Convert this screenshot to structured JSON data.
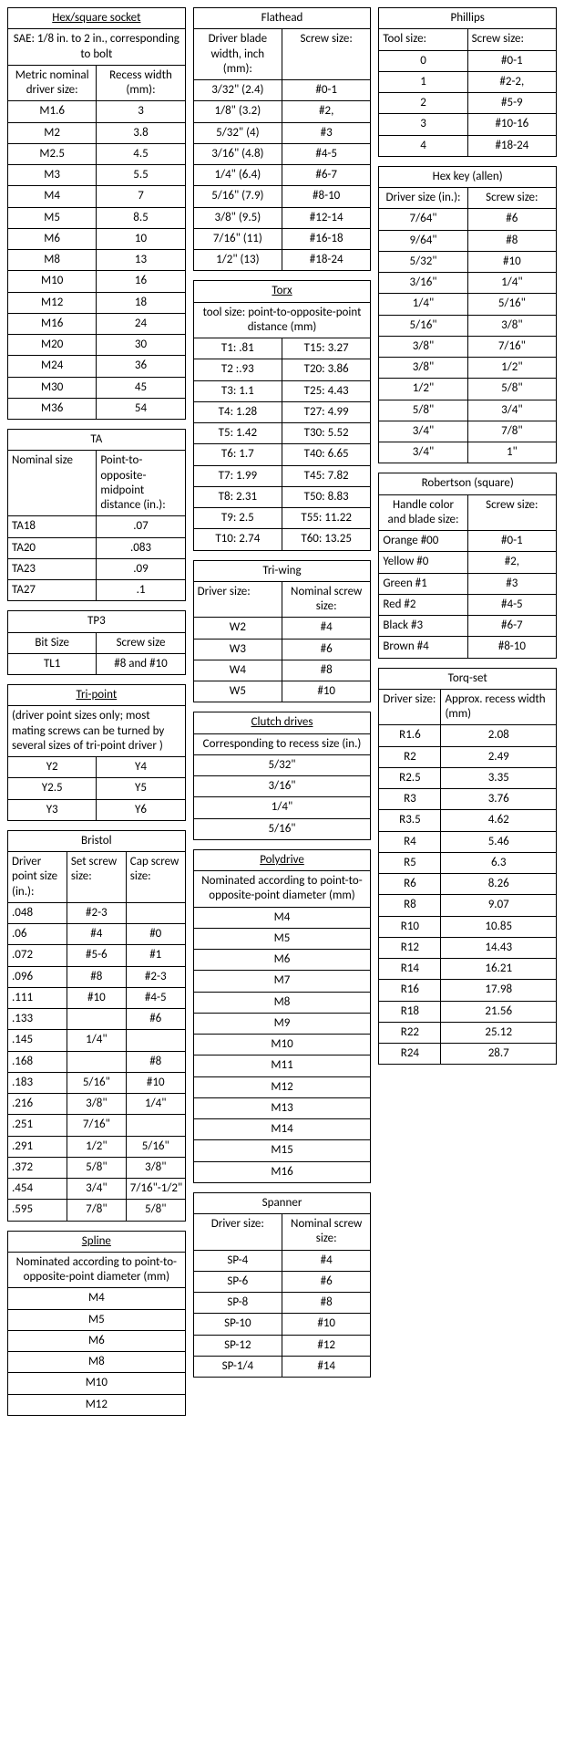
{
  "hex_square": {
    "title": "Hex/square socket",
    "subtitle": "SAE:   1/8 in. to 2 in., corresponding to bolt",
    "headers": [
      "Metric nominal driver size:",
      "Recess width (mm):"
    ],
    "rows": [
      [
        "M1.6",
        "3"
      ],
      [
        "M2",
        "3.8"
      ],
      [
        "M2.5",
        "4.5"
      ],
      [
        "M3",
        "5.5"
      ],
      [
        "M4",
        "7"
      ],
      [
        "M5",
        "8.5"
      ],
      [
        "M6",
        "10"
      ],
      [
        "M8",
        "13"
      ],
      [
        "M10",
        "16"
      ],
      [
        "M12",
        "18"
      ],
      [
        "M16",
        "24"
      ],
      [
        "M20",
        "30"
      ],
      [
        "M24",
        "36"
      ],
      [
        "M30",
        "45"
      ],
      [
        "M36",
        "54"
      ]
    ]
  },
  "ta": {
    "title": "TA",
    "headers": [
      "Nominal size",
      "Point-to-opposite-midpoint distance (in.):"
    ],
    "rows": [
      [
        "TA18",
        ".07"
      ],
      [
        "TA20",
        ".083"
      ],
      [
        "TA23",
        ".09"
      ],
      [
        "TA27",
        ".1"
      ]
    ]
  },
  "tp3": {
    "title": "TP3",
    "headers": [
      "Bit Size",
      "Screw size"
    ],
    "rows": [
      [
        "TL1",
        "#8 and #10"
      ]
    ]
  },
  "tripoint": {
    "title": "Tri-point",
    "subtitle": "(driver point sizes only; most mating screws can be turned by several sizes of tri-point driver )",
    "rows": [
      [
        "Y2",
        "Y4"
      ],
      [
        "Y2.5",
        "Y5"
      ],
      [
        "Y3",
        "Y6"
      ]
    ]
  },
  "bristol": {
    "title": "Bristol",
    "headers": [
      "Driver point size (in.):",
      "Set screw size:",
      "Cap screw size:"
    ],
    "rows": [
      [
        ".048",
        "#2-3",
        ""
      ],
      [
        ".06",
        "#4",
        "#0"
      ],
      [
        ".072",
        "#5-6",
        "#1"
      ],
      [
        ".096",
        "#8",
        "#2-3"
      ],
      [
        ".111",
        "#10",
        "#4-5"
      ],
      [
        ".133",
        "",
        "#6"
      ],
      [
        ".145",
        "1/4\"",
        ""
      ],
      [
        ".168",
        "",
        "#8"
      ],
      [
        ".183",
        "5/16\"",
        "#10"
      ],
      [
        ".216",
        "3/8\"",
        "1/4\""
      ],
      [
        ".251",
        "7/16\"",
        ""
      ],
      [
        ".291",
        "1/2\"",
        "5/16\""
      ],
      [
        ".372",
        "5/8\"",
        "3/8\""
      ],
      [
        ".454",
        "3/4\"",
        "7/16\"-1/2\""
      ],
      [
        ".595",
        "7/8\"",
        "5/8\""
      ]
    ]
  },
  "spline": {
    "title": "Spline",
    "subtitle": "Nominated according to point-to-opposite-point diameter (mm)",
    "rows": [
      "M4",
      "M5",
      "M6",
      "M8",
      "M10",
      "M12"
    ]
  },
  "flathead": {
    "title": "Flathead",
    "headers": [
      "Driver blade width, inch (mm):",
      "Screw size:"
    ],
    "rows": [
      [
        "3/32\" (2.4)",
        "#0-1"
      ],
      [
        "1/8\" (3.2)",
        "#2,"
      ],
      [
        "5/32\" (4)",
        "#3"
      ],
      [
        "3/16\" (4.8)",
        "#4-5"
      ],
      [
        "1/4\" (6.4)",
        "#6-7"
      ],
      [
        "5/16\" (7.9)",
        "#8-10"
      ],
      [
        "3/8\" (9.5)",
        "#12-14"
      ],
      [
        "7/16\" (11)",
        "#16-18"
      ],
      [
        "1/2\" (13)",
        "#18-24"
      ]
    ]
  },
  "torx": {
    "title": "Torx",
    "subtitle": "tool size: point-to-opposite-point distance (mm)",
    "rows": [
      [
        "T1: .81",
        "T15: 3.27"
      ],
      [
        "T2 :.93",
        "T20: 3.86"
      ],
      [
        "T3: 1.1",
        "T25: 4.43"
      ],
      [
        "T4: 1.28",
        "T27: 4.99"
      ],
      [
        "T5: 1.42",
        "T30: 5.52"
      ],
      [
        "T6: 1.7",
        "T40: 6.65"
      ],
      [
        "T7: 1.99",
        "T45: 7.82"
      ],
      [
        "T8: 2.31",
        "T50: 8.83"
      ],
      [
        "T9: 2.5",
        "T55: 11.22"
      ],
      [
        "T10: 2.74",
        "T60: 13.25"
      ]
    ]
  },
  "triwing": {
    "title": "Tri-wing",
    "headers": [
      "Driver size:",
      "Nominal screw size:"
    ],
    "rows": [
      [
        "W2",
        "#4"
      ],
      [
        "W3",
        "#6"
      ],
      [
        "W4",
        "#8"
      ],
      [
        "W5",
        "#10"
      ]
    ]
  },
  "clutch": {
    "title": "Clutch drives",
    "subtitle": "Corresponding to recess size (in.)",
    "rows": [
      "5/32\"",
      "3/16\"",
      "1/4\"",
      "5/16\""
    ]
  },
  "polydrive": {
    "title": "Polydrive",
    "subtitle": "Nominated according to point-to-opposite-point diameter (mm)",
    "rows": [
      "M4",
      "M5",
      "M6",
      "M7",
      "M8",
      "M9",
      "M10",
      "M11",
      "M12",
      "M13",
      "M14",
      "M15",
      "M16"
    ]
  },
  "spanner": {
    "title": "Spanner",
    "headers": [
      "Driver size:",
      "Nominal screw size:"
    ],
    "rows": [
      [
        "SP-4",
        "#4"
      ],
      [
        "SP-6",
        "#6"
      ],
      [
        "SP-8",
        "#8"
      ],
      [
        "SP-10",
        "#10"
      ],
      [
        "SP-12",
        "#12"
      ],
      [
        "SP-1/4",
        "#14"
      ]
    ]
  },
  "phillips": {
    "title": "Phillips",
    "headers": [
      "Tool size:",
      "Screw size:"
    ],
    "rows": [
      [
        "0",
        "#0-1"
      ],
      [
        "1",
        "#2-2,"
      ],
      [
        "2",
        "#5-9"
      ],
      [
        "3",
        "#10-16"
      ],
      [
        "4",
        "#18-24"
      ]
    ]
  },
  "hexkey": {
    "title": "Hex key (allen)",
    "headers": [
      "Driver size (in.):",
      "Screw size:"
    ],
    "rows": [
      [
        "7/64\"",
        "#6"
      ],
      [
        "9/64\"",
        "#8"
      ],
      [
        "5/32\"",
        "#10"
      ],
      [
        "3/16\"",
        "1/4\""
      ],
      [
        "1/4\"",
        "5/16\""
      ],
      [
        "5/16\"",
        "3/8\""
      ],
      [
        "3/8\"",
        "7/16\""
      ],
      [
        "3/8\"",
        "1/2\""
      ],
      [
        "1/2\"",
        "5/8\""
      ],
      [
        "5/8\"",
        "3/4\""
      ],
      [
        "3/4\"",
        "7/8\""
      ],
      [
        "3/4\"",
        "1\""
      ]
    ]
  },
  "robertson": {
    "title": "Robertson (square)",
    "headers": [
      "Handle color and blade size:",
      "Screw size:"
    ],
    "rows": [
      [
        "Orange #00",
        "#0-1"
      ],
      [
        "Yellow #0",
        "#2,"
      ],
      [
        "Green #1",
        "#3"
      ],
      [
        "Red #2",
        "#4-5"
      ],
      [
        "Black #3",
        "#6-7"
      ],
      [
        "Brown #4",
        "#8-10"
      ]
    ]
  },
  "torqset": {
    "title": "Torq-set",
    "headers": [
      "Driver size:",
      "Approx. recess width (mm)"
    ],
    "rows": [
      [
        "R1.6",
        "2.08"
      ],
      [
        "R2",
        "2.49"
      ],
      [
        "R2.5",
        "3.35"
      ],
      [
        "R3",
        "3.76"
      ],
      [
        "R3.5",
        "4.62"
      ],
      [
        "R4",
        "5.46"
      ],
      [
        "R5",
        "6.3"
      ],
      [
        "R6",
        "8.26"
      ],
      [
        "R8",
        "9.07"
      ],
      [
        "R10",
        "10.85"
      ],
      [
        "R12",
        "14.43"
      ],
      [
        "R14",
        "16.21"
      ],
      [
        "R16",
        "17.98"
      ],
      [
        "R18",
        "21.56"
      ],
      [
        "R22",
        "25.12"
      ],
      [
        "R24",
        "28.7"
      ]
    ]
  }
}
